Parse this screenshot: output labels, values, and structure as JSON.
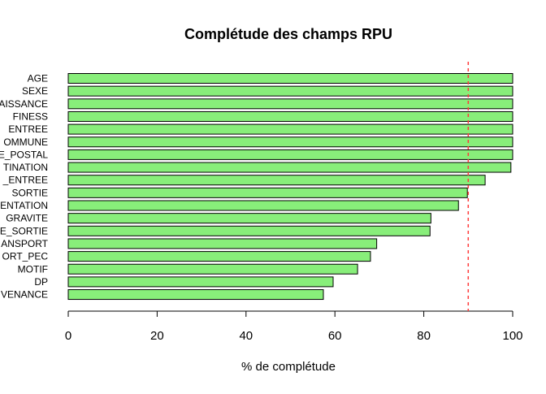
{
  "chart_data": {
    "type": "bar",
    "orientation": "horizontal",
    "title": "Complétude des champs RPU",
    "xlabel": "% de complétude",
    "ylabel": "",
    "xlim": [
      0,
      100
    ],
    "xticks": [
      0,
      20,
      40,
      60,
      80,
      100
    ],
    "categories": [
      "AGE",
      "SEXE",
      "NAISSANCE",
      "FINESS",
      "ENTREE",
      "COMMUNE",
      "CODE_POSTAL",
      "DESTINATION",
      "MODE_ENTREE",
      "SORTIE",
      "ORIENTATION",
      "GRAVITE",
      "MODE_SORTIE",
      "TRANSPORT",
      "TRANSPORT_PEC",
      "MOTIF",
      "DP",
      "PROVENANCE"
    ],
    "category_labels_visible": [
      "AGE",
      "SEXE",
      "AISSANCE",
      "FINESS",
      "ENTREE",
      "OMMUNE",
      "E_POSTAL",
      "TINATION",
      "_ENTREE",
      "SORTIE",
      "ENTATION",
      "GRAVITE",
      "E_SORTIE",
      "ANSPORT",
      "ORT_PEC",
      "MOTIF",
      "DP",
      "VENANCE"
    ],
    "values": [
      100,
      100,
      100,
      100,
      100,
      100,
      100,
      99.6,
      93.8,
      89.8,
      87.8,
      81.6,
      81.4,
      69.4,
      68,
      65.1,
      59.6,
      57.4
    ],
    "reference_line": {
      "value": 90,
      "color": "#ff3b3b",
      "style": "dashed"
    },
    "bar_color": "#88ee7a",
    "bar_edge_color": "#000000",
    "grid": false,
    "legend": "none"
  }
}
